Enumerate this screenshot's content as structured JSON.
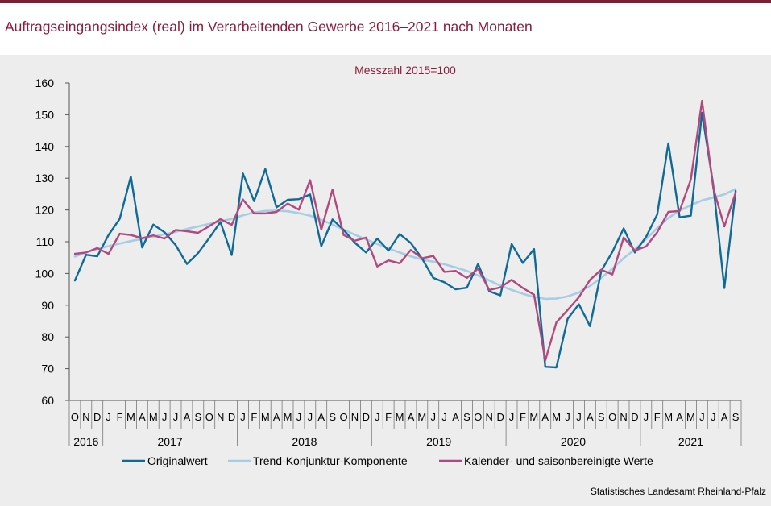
{
  "title": "Auftragseingangsindex (real) im Verarbeitenden Gewerbe 2016–2021 nach Monaten",
  "credit": "Statistisches Landesamt Rheinland-Pfalz",
  "colors": {
    "accent": "#8c1c3a",
    "original": "#0f6b96",
    "trend": "#a6cde4",
    "adjusted": "#b04a7e",
    "background": "#ededed"
  },
  "chart_data": {
    "type": "line",
    "subtitle": "Messzahl 2015=100",
    "ylim": [
      60,
      160
    ],
    "yticks": [
      60,
      70,
      80,
      90,
      100,
      110,
      120,
      130,
      140,
      150,
      160
    ],
    "grid": false,
    "legend": "bottom",
    "months": [
      "O",
      "N",
      "D",
      "J",
      "F",
      "M",
      "A",
      "M",
      "J",
      "J",
      "A",
      "S",
      "O",
      "N",
      "D",
      "J",
      "F",
      "M",
      "A",
      "M",
      "J",
      "J",
      "A",
      "S",
      "O",
      "N",
      "D",
      "J",
      "F",
      "M",
      "A",
      "M",
      "J",
      "J",
      "A",
      "S",
      "O",
      "N",
      "D",
      "J",
      "F",
      "M",
      "A",
      "M",
      "J",
      "J",
      "A",
      "S",
      "O",
      "N",
      "D",
      "J",
      "F",
      "M",
      "A",
      "M",
      "J",
      "J",
      "A",
      "S"
    ],
    "years": [
      {
        "label": "2016",
        "months": 3
      },
      {
        "label": "2017",
        "months": 12
      },
      {
        "label": "2018",
        "months": 12
      },
      {
        "label": "2019",
        "months": 12
      },
      {
        "label": "2020",
        "months": 12
      },
      {
        "label": "2021",
        "months": 9
      }
    ],
    "series": [
      {
        "name": "Originalwert",
        "color": "#0f6b96",
        "values": [
          97.8,
          105.9,
          105.4,
          112.1,
          117.2,
          130.5,
          108.2,
          115.4,
          113.0,
          108.9,
          103.0,
          106.4,
          111.2,
          116.2,
          105.8,
          131.5,
          122.8,
          132.9,
          120.8,
          123.2,
          123.4,
          124.9,
          108.6,
          117.0,
          113.7,
          109.7,
          106.6,
          111.0,
          107.2,
          112.4,
          109.6,
          104.7,
          98.6,
          97.2,
          95.0,
          95.5,
          103.0,
          94.4,
          93.1,
          109.3,
          103.3,
          107.7,
          70.6,
          70.4,
          85.7,
          90.3,
          83.4,
          100.8,
          106.8,
          114.2,
          106.6,
          111.5,
          118.6,
          141.0,
          117.7,
          118.2,
          150.6,
          127.9,
          95.4,
          126.0
        ]
      },
      {
        "name": "Trend-Konjunktur-Komponente",
        "color": "#a6cde4",
        "values": [
          105.3,
          106.7,
          107.7,
          108.6,
          109.4,
          110.2,
          110.9,
          111.6,
          112.3,
          113.1,
          114.0,
          114.8,
          115.6,
          116.4,
          117.2,
          118.3,
          119.2,
          119.7,
          119.8,
          119.6,
          119.0,
          118.2,
          116.9,
          115.4,
          113.8,
          112.2,
          110.7,
          109.3,
          107.9,
          106.6,
          105.4,
          104.4,
          103.7,
          102.9,
          101.9,
          100.8,
          99.4,
          97.8,
          96.2,
          94.8,
          93.6,
          92.6,
          92.0,
          92.1,
          92.8,
          94.0,
          96.1,
          98.6,
          101.5,
          104.8,
          107.6,
          110.8,
          114.3,
          117.5,
          119.8,
          121.5,
          123.0,
          123.9,
          124.9,
          126.6
        ]
      },
      {
        "name": "Kalender- und saisonbereinigte Werte",
        "color": "#b04a7e",
        "values": [
          106.2,
          106.6,
          108.0,
          106.2,
          112.5,
          112.1,
          111.1,
          112.0,
          111.0,
          113.7,
          113.3,
          112.8,
          114.9,
          117.1,
          115.3,
          123.3,
          118.9,
          118.9,
          119.4,
          122.0,
          120.1,
          129.4,
          113.8,
          126.4,
          112.1,
          110.3,
          111.3,
          102.2,
          104.1,
          103.2,
          107.4,
          104.8,
          105.5,
          100.5,
          100.8,
          98.6,
          101.5,
          94.8,
          95.6,
          98.0,
          95.4,
          93.3,
          72.6,
          84.6,
          88.5,
          92.5,
          98.0,
          101.2,
          99.7,
          111.3,
          107.2,
          108.5,
          113.0,
          119.4,
          119.7,
          129.6,
          154.4,
          127.0,
          114.8,
          125.4
        ]
      }
    ]
  }
}
